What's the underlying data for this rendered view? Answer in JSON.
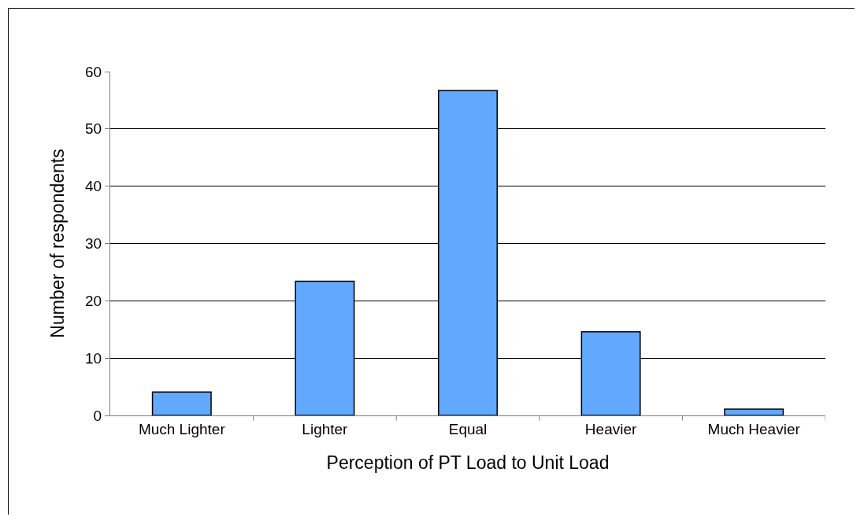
{
  "chart_data": {
    "type": "bar",
    "xlabel": "Perception of PT Load to Unit Load",
    "ylabel": "Number of respondents",
    "categories": [
      "Much Lighter",
      "Lighter",
      "Equal",
      "Heavier",
      "Much Heavier"
    ],
    "values": [
      4.1,
      23.4,
      56.7,
      14.6,
      1.1
    ],
    "color": "#62a8ff",
    "ylim": [
      0,
      60
    ],
    "yticks": [
      0,
      10,
      20,
      30,
      40,
      50,
      60
    ],
    "grid": "y"
  }
}
